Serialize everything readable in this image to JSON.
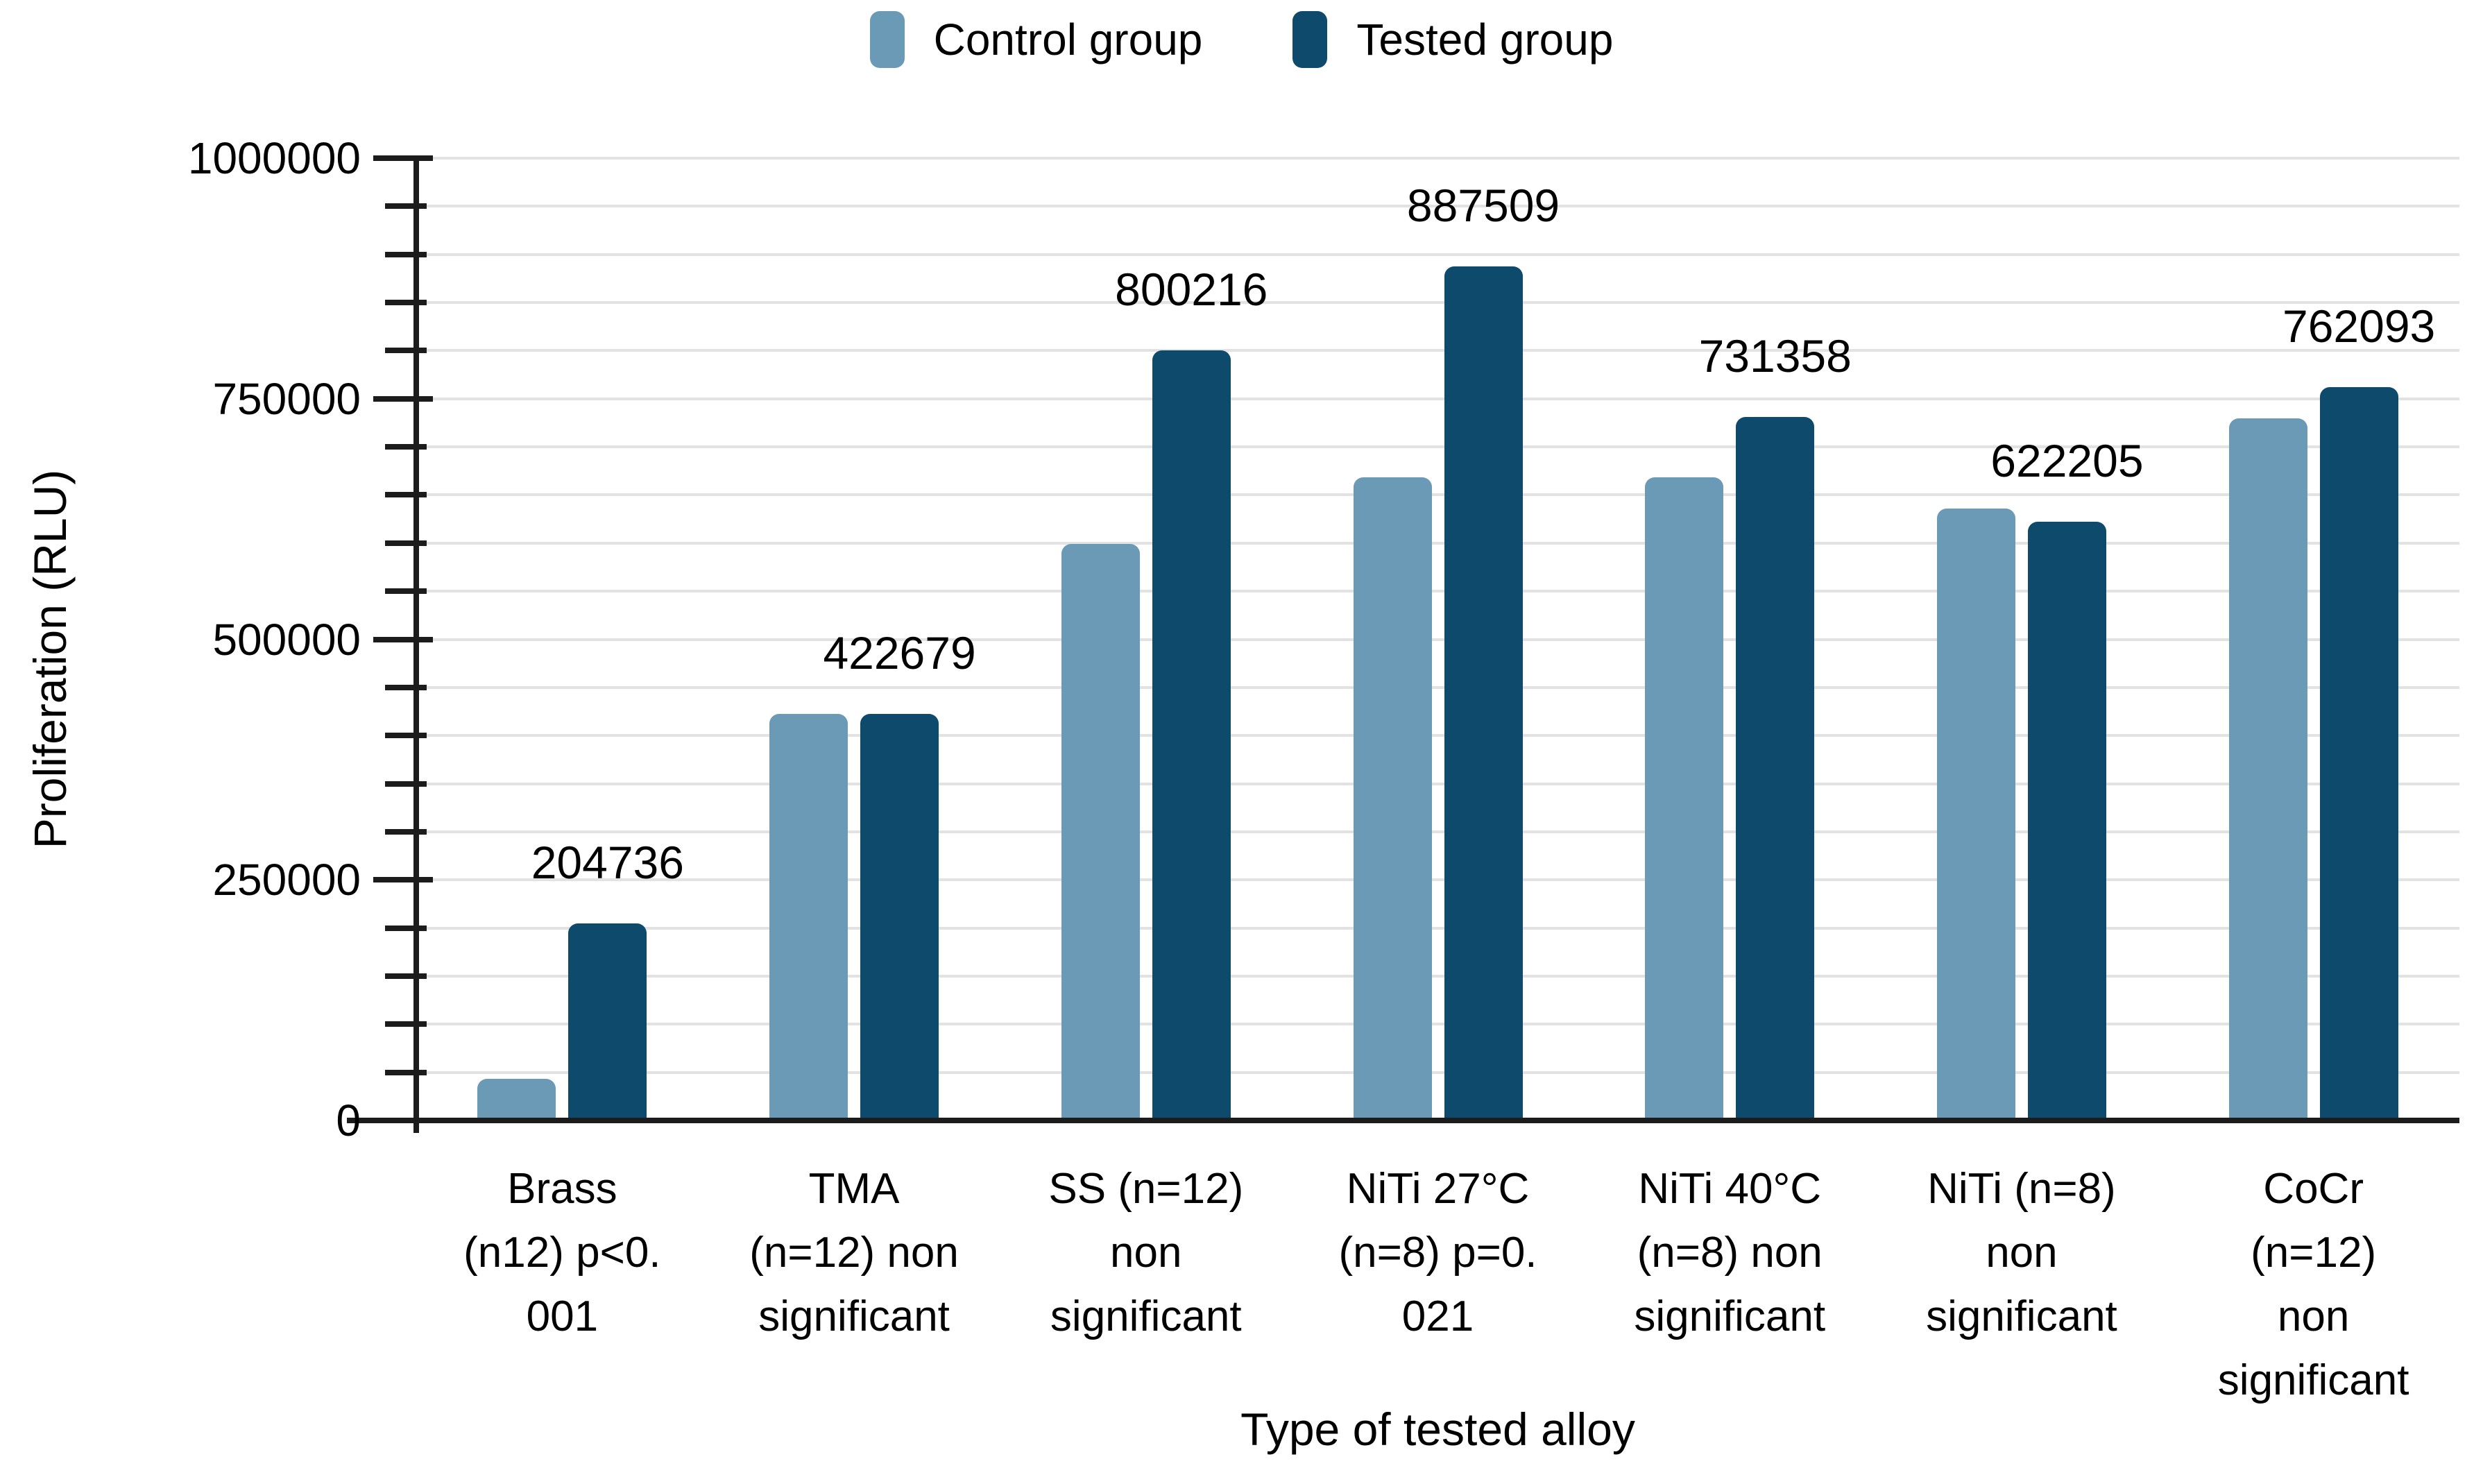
{
  "legend": [
    {
      "label": "Control group",
      "color": "#6B9AB7"
    },
    {
      "label": "Tested group",
      "color": "#0D4A6C"
    }
  ],
  "chart_data": {
    "type": "bar",
    "title": "",
    "xlabel": "Type of tested alloy",
    "ylabel": "Proliferation (RLU)",
    "ylim": [
      0,
      1000000
    ],
    "grid": true,
    "legend_position": "top",
    "y_major_ticks": [
      0,
      250000,
      500000,
      750000,
      1000000
    ],
    "y_tick_labels": [
      "0",
      "250000",
      "500000",
      "750000",
      "1000000"
    ],
    "y_minor_step": 50000,
    "categories": [
      "Brass (n12) p<0.001",
      "TMA (n=12) non significant",
      "SS (n=12) non significant",
      "NiTi 27°C (n=8) p=0.021",
      "NiTi 40°C (n=8) non significant",
      "NiTi (n=8) non significant",
      "CoCr (n=12) non significant"
    ],
    "categories_wrapped": [
      "Brass\n(n12) p<0.\n001",
      "TMA\n(n=12) non\nsignificant",
      "SS (n=12)\nnon\nsignificant",
      "NiTi 27°C\n(n=8) p=0.\n021",
      "NiTi 40°C\n(n=8) non\nsignificant",
      "NiTi (n=8)\nnon\nsignificant",
      "CoCr\n(n=12) non\nsignificant"
    ],
    "series": [
      {
        "name": "Control group",
        "color": "#6B9AB7",
        "values": [
          43000,
          422500,
          599000,
          668000,
          668000,
          636000,
          730000
        ]
      },
      {
        "name": "Tested group",
        "color": "#0D4A6C",
        "values": [
          204736,
          422679,
          800216,
          887509,
          731358,
          622205,
          762093
        ]
      }
    ],
    "data_labels": [
      "204736",
      "422679",
      "800216",
      "887509",
      "731358",
      "622205",
      "762093"
    ],
    "colors": {
      "control": "#6B9AB7",
      "tested": "#0D4A6C",
      "gridline": "#e2e2e2",
      "axis": "#1c1c1c",
      "text": "#000000"
    }
  }
}
